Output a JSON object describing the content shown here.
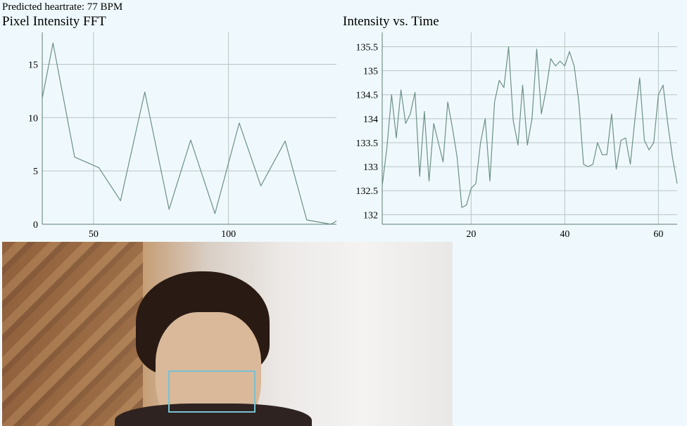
{
  "status": {
    "heartrate_text": "Predicted heartrate: 77 BPM"
  },
  "colors": {
    "background": "#eff9fd",
    "series": "#6e8f86",
    "roi_box": "#79c1d3"
  },
  "chart_data": [
    {
      "type": "line",
      "title": "Pixel Intensity FFT",
      "xlim": [
        31,
        140
      ],
      "ylim": [
        0,
        18
      ],
      "x_ticks": [
        50,
        100
      ],
      "y_ticks": [
        0,
        5,
        10,
        15
      ],
      "grid": true,
      "x": [
        31,
        35,
        43,
        52,
        60,
        69,
        78,
        86,
        95,
        104,
        112,
        121,
        129,
        138,
        140
      ],
      "values": [
        11.8,
        17.0,
        6.3,
        5.3,
        2.2,
        12.4,
        1.4,
        7.9,
        1.0,
        9.5,
        3.6,
        7.8,
        0.4,
        0.0,
        0.3
      ]
    },
    {
      "type": "line",
      "title": "Intensity vs. Time",
      "xlim": [
        1,
        64
      ],
      "ylim": [
        131.8,
        135.8
      ],
      "x_ticks": [
        20,
        40,
        60
      ],
      "y_ticks": [
        "132",
        "132.5",
        "133",
        "133.5",
        "134",
        "134.5",
        "135",
        "135.5"
      ],
      "grid": true,
      "x": [
        1,
        2,
        3,
        4,
        5,
        6,
        7,
        8,
        9,
        10,
        11,
        12,
        13,
        14,
        15,
        16,
        17,
        18,
        19,
        20,
        21,
        22,
        23,
        24,
        25,
        26,
        27,
        28,
        29,
        30,
        31,
        32,
        33,
        34,
        35,
        36,
        37,
        38,
        39,
        40,
        41,
        42,
        43,
        44,
        45,
        46,
        47,
        48,
        49,
        50,
        51,
        52,
        53,
        54,
        55,
        56,
        57,
        58,
        59,
        60,
        61,
        62,
        63,
        64
      ],
      "values": [
        132.6,
        133.4,
        134.5,
        133.6,
        134.6,
        133.9,
        134.1,
        134.55,
        132.8,
        134.15,
        132.7,
        133.9,
        133.5,
        133.1,
        134.35,
        133.8,
        133.2,
        132.15,
        132.2,
        132.55,
        132.65,
        133.5,
        134.0,
        132.7,
        134.35,
        134.8,
        134.65,
        135.5,
        133.95,
        133.45,
        134.7,
        133.45,
        134.0,
        135.45,
        134.1,
        134.6,
        135.25,
        135.1,
        135.2,
        135.1,
        135.4,
        135.1,
        134.35,
        133.05,
        133.0,
        133.05,
        133.5,
        133.25,
        133.25,
        134.1,
        132.95,
        133.55,
        133.6,
        133.05,
        134.0,
        134.85,
        133.55,
        133.35,
        133.5,
        134.5,
        134.7,
        133.9,
        133.2,
        132.65
      ]
    }
  ]
}
